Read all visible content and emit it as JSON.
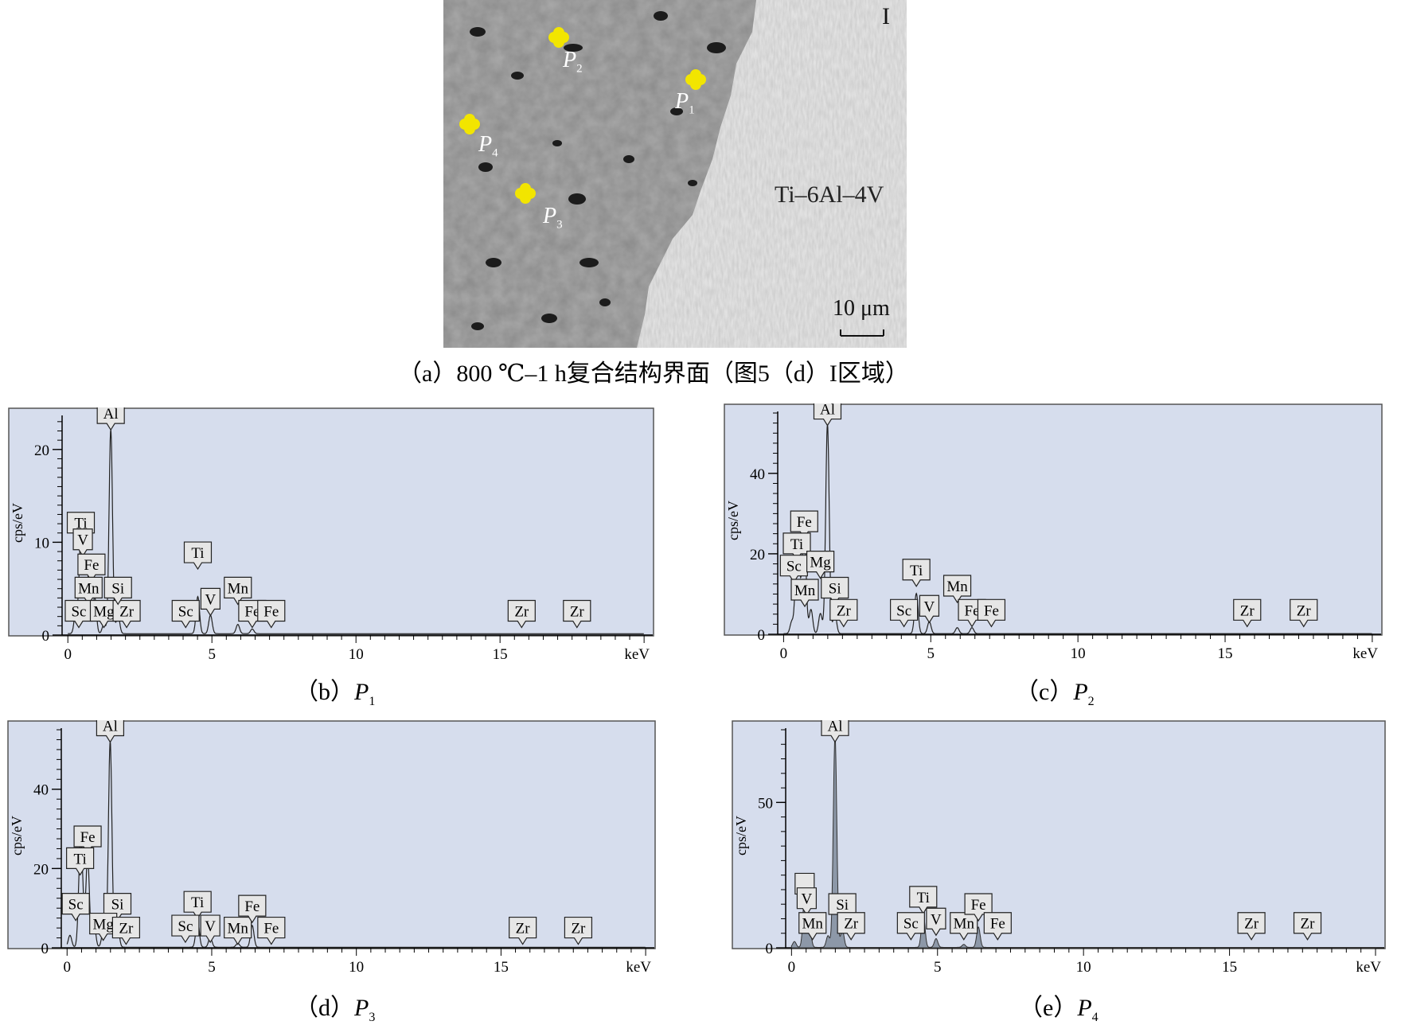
{
  "sem_image": {
    "region_label": "I",
    "alloy_label": "Ti–6Al–4V",
    "scale_bar_label": "10 μm",
    "points": [
      {
        "label": "P",
        "sub": "1"
      },
      {
        "label": "P",
        "sub": "2"
      },
      {
        "label": "P",
        "sub": "3"
      },
      {
        "label": "P",
        "sub": "4"
      }
    ],
    "marker_color": "#f2e500",
    "caption": "（a）800 ℃–1 h复合结构界面（图5（d）I区域）"
  },
  "captions": {
    "b": {
      "prefix": "（b）",
      "var": "P",
      "sub": "1"
    },
    "c": {
      "prefix": "（c）",
      "var": "P",
      "sub": "2"
    },
    "d": {
      "prefix": "（d）",
      "var": "P",
      "sub": "3"
    },
    "e": {
      "prefix": "（e）",
      "var": "P",
      "sub": "4"
    }
  },
  "chart_data": [
    {
      "type": "line",
      "panel": "b",
      "ylabel": "cps/eV",
      "xlabel": "keV",
      "xlim": [
        -0.2,
        20.3
      ],
      "ylim": [
        0,
        23.5
      ],
      "xticks": [
        "0",
        "5",
        "10",
        "15"
      ],
      "yticks": [
        "0",
        "10",
        "20"
      ],
      "peaks": [
        [
          0.28,
          2.5
        ],
        [
          0.45,
          9.5
        ],
        [
          0.52,
          4.0
        ],
        [
          0.62,
          5.5
        ],
        [
          0.71,
          4.0
        ],
        [
          0.93,
          4.0
        ],
        [
          1.25,
          1.0
        ],
        [
          1.49,
          22.0
        ],
        [
          1.74,
          2.0
        ],
        [
          4.51,
          4.0
        ],
        [
          4.95,
          2.0
        ],
        [
          5.9,
          1.0
        ],
        [
          6.4,
          0.5
        ]
      ],
      "labels": [
        {
          "text": "Al",
          "x": 1.49,
          "y": 22.8
        },
        {
          "text": "Ti",
          "x": 0.45,
          "y": 11.0
        },
        {
          "text": "V",
          "x": 0.52,
          "y": 9.2
        },
        {
          "text": "Fe",
          "x": 0.82,
          "y": 6.5
        },
        {
          "text": "Mn",
          "x": 0.72,
          "y": 4.0
        },
        {
          "text": "Sc",
          "x": 0.38,
          "y": 1.5
        },
        {
          "text": "Mg",
          "x": 1.25,
          "y": 1.5
        },
        {
          "text": "Zr",
          "x": 2.04,
          "y": 1.5
        },
        {
          "text": "Si",
          "x": 1.74,
          "y": 4.0
        },
        {
          "text": "Ti",
          "x": 4.51,
          "y": 7.8
        },
        {
          "text": "V",
          "x": 4.95,
          "y": 2.8
        },
        {
          "text": "Sc",
          "x": 4.09,
          "y": 1.5
        },
        {
          "text": "Mn",
          "x": 5.9,
          "y": 4.0
        },
        {
          "text": "Fe",
          "x": 6.4,
          "y": 1.5
        },
        {
          "text": "Fe",
          "x": 7.06,
          "y": 1.5
        },
        {
          "text": "Zr",
          "x": 15.75,
          "y": 1.5
        },
        {
          "text": "Zr",
          "x": 17.67,
          "y": 1.5
        }
      ]
    },
    {
      "type": "line",
      "panel": "c",
      "ylabel": "cps/eV",
      "xlabel": "keV",
      "xlim": [
        -0.2,
        20.3
      ],
      "ylim": [
        0,
        55
      ],
      "xticks": [
        "0",
        "5",
        "10",
        "15"
      ],
      "yticks": [
        "0",
        "20",
        "40"
      ],
      "peaks": [
        [
          0.28,
          3.0
        ],
        [
          0.45,
          18.0
        ],
        [
          0.52,
          10.0
        ],
        [
          0.65,
          8.0
        ],
        [
          0.71,
          22.0
        ],
        [
          0.93,
          6.0
        ],
        [
          1.25,
          5.0
        ],
        [
          1.49,
          52.0
        ],
        [
          1.74,
          5.0
        ],
        [
          4.51,
          10.0
        ],
        [
          4.95,
          3.0
        ],
        [
          5.9,
          1.5
        ],
        [
          6.4,
          1.5
        ]
      ],
      "labels": [
        {
          "text": "Al",
          "x": 1.49,
          "y": 53.5
        },
        {
          "text": "Fe",
          "x": 0.7,
          "y": 25.5
        },
        {
          "text": "Ti",
          "x": 0.45,
          "y": 20.0
        },
        {
          "text": "Sc",
          "x": 0.35,
          "y": 14.5
        },
        {
          "text": "Mg",
          "x": 1.25,
          "y": 15.5
        },
        {
          "text": "Mn",
          "x": 0.72,
          "y": 8.5
        },
        {
          "text": "Si",
          "x": 1.74,
          "y": 9.0
        },
        {
          "text": "Zr",
          "x": 2.04,
          "y": 3.5
        },
        {
          "text": "Ti",
          "x": 4.51,
          "y": 13.5
        },
        {
          "text": "Sc",
          "x": 4.09,
          "y": 3.5
        },
        {
          "text": "V",
          "x": 4.95,
          "y": 4.5
        },
        {
          "text": "Mn",
          "x": 5.9,
          "y": 9.5
        },
        {
          "text": "Fe",
          "x": 6.4,
          "y": 3.5
        },
        {
          "text": "Fe",
          "x": 7.06,
          "y": 3.5
        },
        {
          "text": "Zr",
          "x": 15.75,
          "y": 3.5
        },
        {
          "text": "Zr",
          "x": 17.67,
          "y": 3.5
        }
      ]
    },
    {
      "type": "line",
      "panel": "d",
      "ylabel": "cps/eV",
      "xlabel": "keV",
      "xlim": [
        -0.2,
        20.3
      ],
      "ylim": [
        0,
        55
      ],
      "xticks": [
        "0",
        "5",
        "10",
        "15"
      ],
      "yticks": [
        "0",
        "20",
        "40"
      ],
      "peaks": [
        [
          0.1,
          3.0
        ],
        [
          0.45,
          20.0
        ],
        [
          0.52,
          12.0
        ],
        [
          0.71,
          23.0
        ],
        [
          0.93,
          6.0
        ],
        [
          1.25,
          4.0
        ],
        [
          1.49,
          52.0
        ],
        [
          1.74,
          6.0
        ],
        [
          4.51,
          7.0
        ],
        [
          4.95,
          2.5
        ],
        [
          5.9,
          1.0
        ],
        [
          6.4,
          5.5
        ]
      ],
      "labels": [
        {
          "text": "Al",
          "x": 1.49,
          "y": 53.5
        },
        {
          "text": "Fe",
          "x": 0.71,
          "y": 25.5
        },
        {
          "text": "Ti",
          "x": 0.45,
          "y": 20.0
        },
        {
          "text": "Sc",
          "x": 0.3,
          "y": 8.5
        },
        {
          "text": "Si",
          "x": 1.74,
          "y": 8.5
        },
        {
          "text": "Mg",
          "x": 1.25,
          "y": 3.5
        },
        {
          "text": "Zr",
          "x": 2.04,
          "y": 2.5
        },
        {
          "text": "Ti",
          "x": 4.51,
          "y": 9.0
        },
        {
          "text": "Sc",
          "x": 4.09,
          "y": 3.0
        },
        {
          "text": "V",
          "x": 4.95,
          "y": 3.0
        },
        {
          "text": "Mn",
          "x": 5.9,
          "y": 2.5
        },
        {
          "text": "Fe",
          "x": 6.4,
          "y": 8.0
        },
        {
          "text": "Fe",
          "x": 7.06,
          "y": 2.5
        },
        {
          "text": "Zr",
          "x": 15.75,
          "y": 2.5
        },
        {
          "text": "Zr",
          "x": 17.67,
          "y": 2.5
        }
      ]
    },
    {
      "type": "area",
      "panel": "e",
      "ylabel": "cps/eV",
      "xlabel": "keV",
      "xlim": [
        -0.2,
        20.3
      ],
      "ylim": [
        0,
        75
      ],
      "xticks": [
        "0",
        "5",
        "10",
        "15"
      ],
      "yticks": [
        "0",
        "50"
      ],
      "peaks": [
        [
          0.1,
          2.0
        ],
        [
          0.45,
          16.0
        ],
        [
          0.52,
          10.0
        ],
        [
          0.62,
          6.0
        ],
        [
          1.25,
          4.0
        ],
        [
          1.49,
          73.0
        ],
        [
          1.74,
          6.0
        ],
        [
          4.51,
          12.0
        ],
        [
          4.95,
          3.0
        ],
        [
          5.9,
          1.0
        ],
        [
          6.4,
          7.0
        ]
      ],
      "labels": [
        {
          "text": "Al",
          "x": 1.49,
          "y": 73.0
        },
        {
          "text": "",
          "x": 0.45,
          "y": 18.5
        },
        {
          "text": "V",
          "x": 0.52,
          "y": 13.5
        },
        {
          "text": "Mn",
          "x": 0.72,
          "y": 5.0
        },
        {
          "text": "Si",
          "x": 1.74,
          "y": 11.5
        },
        {
          "text": "Zr",
          "x": 2.04,
          "y": 5.0
        },
        {
          "text": "Ti",
          "x": 4.51,
          "y": 14.0
        },
        {
          "text": "Sc",
          "x": 4.09,
          "y": 5.0
        },
        {
          "text": "V",
          "x": 4.95,
          "y": 6.5
        },
        {
          "text": "Mn",
          "x": 5.9,
          "y": 5.0
        },
        {
          "text": "Fe",
          "x": 6.4,
          "y": 11.5
        },
        {
          "text": "Fe",
          "x": 7.06,
          "y": 5.0
        },
        {
          "text": "Zr",
          "x": 15.75,
          "y": 5.0
        },
        {
          "text": "Zr",
          "x": 17.67,
          "y": 5.0
        }
      ]
    }
  ],
  "colors": {
    "plot_bg": "#d6dded",
    "area_fill": "#8d98a8"
  }
}
